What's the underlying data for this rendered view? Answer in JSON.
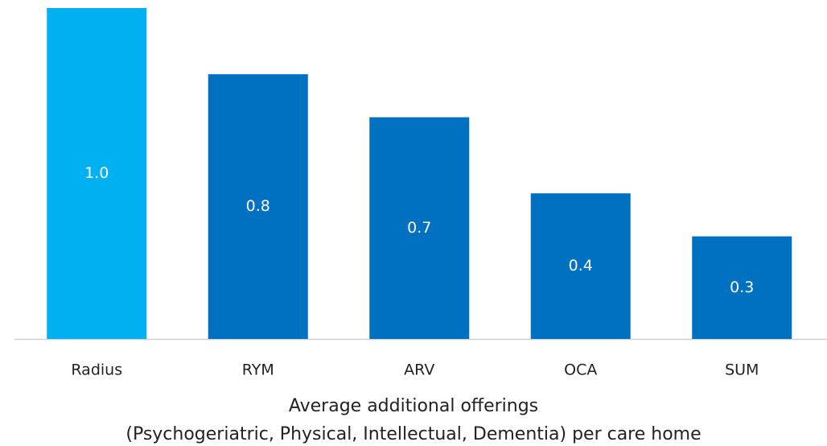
{
  "chart_data": {
    "type": "bar",
    "title": [
      "Average additional offerings",
      "(Psychogeriatric, Physical, Intellectual, Dementia) per care home"
    ],
    "categories": [
      "Radius",
      "RYM",
      "ARV",
      "OCA",
      "SUM"
    ],
    "values": [
      1.0,
      0.8,
      0.67,
      0.44,
      0.31
    ],
    "value_labels": [
      "1.0",
      "0.8",
      "0.7",
      "0.4",
      "0.3"
    ],
    "colors": [
      "#00b0f0",
      "#0070c0",
      "#0070c0",
      "#0070c0",
      "#0070c0"
    ]
  }
}
